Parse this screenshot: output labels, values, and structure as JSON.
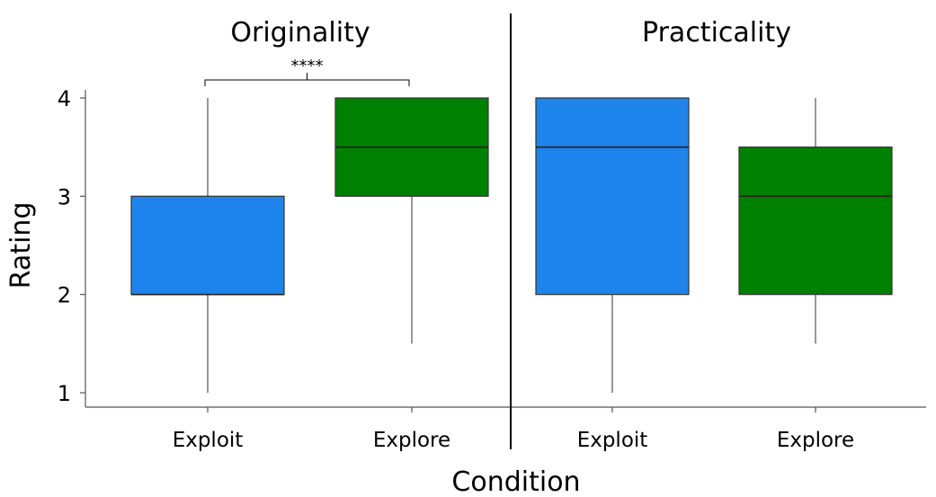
{
  "chart_data": {
    "type": "box",
    "xlabel": "Condition",
    "ylabel": "Rating",
    "ylim": [
      1,
      4
    ],
    "yticks": [
      "1",
      "2",
      "3",
      "4"
    ],
    "legend": "none",
    "grid": false,
    "panels": [
      {
        "title": "Originality",
        "categories": [
          "Exploit",
          "Explore"
        ],
        "boxes": [
          {
            "category": "Exploit",
            "whisker_low": 1,
            "q1": 2,
            "median": 2,
            "q3": 3,
            "whisker_high": 4,
            "color": "#1E84EB"
          },
          {
            "category": "Explore",
            "whisker_low": 1.5,
            "q1": 3,
            "median": 3.5,
            "q3": 4,
            "whisker_high": 4,
            "color": "#008000"
          }
        ],
        "significance": {
          "label": "****",
          "between": [
            "Exploit",
            "Explore"
          ]
        }
      },
      {
        "title": "Practicality",
        "categories": [
          "Exploit",
          "Explore"
        ],
        "boxes": [
          {
            "category": "Exploit",
            "whisker_low": 1,
            "q1": 2,
            "median": 3.5,
            "q3": 4,
            "whisker_high": 4,
            "color": "#1E84EB"
          },
          {
            "category": "Explore",
            "whisker_low": 1.5,
            "q1": 2,
            "median": 3,
            "q3": 3.5,
            "whisker_high": 4,
            "color": "#008000"
          }
        ]
      }
    ]
  }
}
